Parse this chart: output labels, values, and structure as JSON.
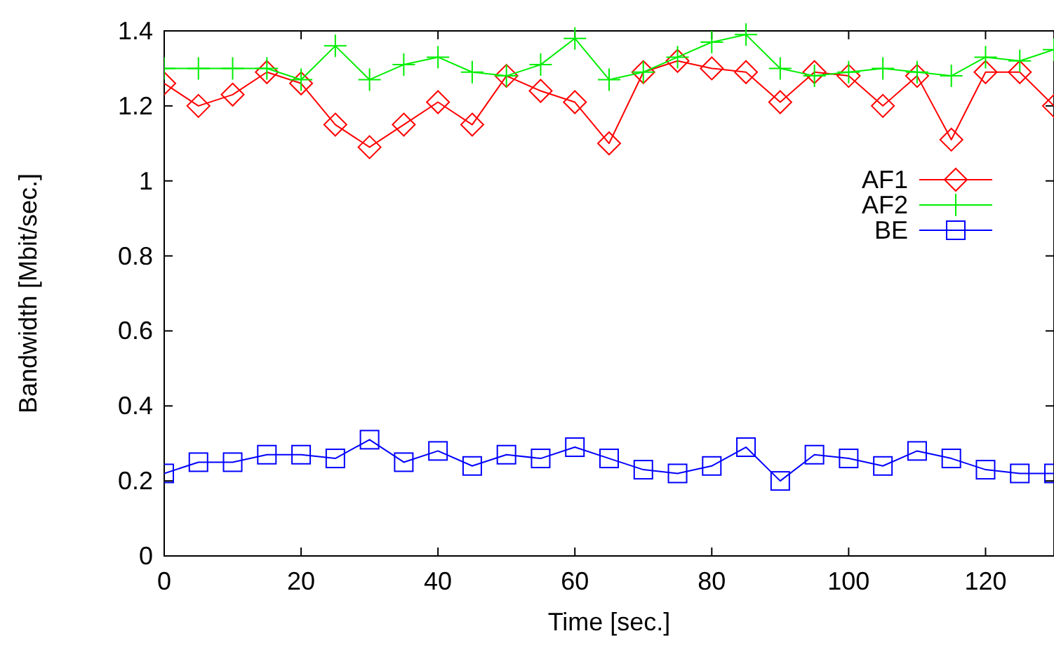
{
  "chart_data": {
    "type": "line",
    "xlabel": "Time [sec.]",
    "ylabel": "Bandwidth [Mbit/sec.]",
    "x": [
      0,
      5,
      10,
      15,
      20,
      25,
      30,
      35,
      40,
      45,
      50,
      55,
      60,
      65,
      70,
      75,
      80,
      85,
      90,
      95,
      100,
      105,
      110,
      115,
      120,
      125,
      130
    ],
    "series": [
      {
        "name": "AF1",
        "color": "#ff0000",
        "marker": "diamond",
        "values": [
          1.26,
          1.2,
          1.23,
          1.29,
          1.26,
          1.15,
          1.09,
          1.15,
          1.21,
          1.15,
          1.28,
          1.24,
          1.21,
          1.1,
          1.29,
          1.32,
          1.3,
          1.29,
          1.21,
          1.29,
          1.28,
          1.2,
          1.28,
          1.11,
          1.29,
          1.29,
          1.2
        ]
      },
      {
        "name": "AF2",
        "color": "#00ee00",
        "marker": "cross",
        "values": [
          1.3,
          1.3,
          1.3,
          1.3,
          1.27,
          1.36,
          1.27,
          1.31,
          1.33,
          1.29,
          1.28,
          1.31,
          1.38,
          1.27,
          1.29,
          1.33,
          1.37,
          1.39,
          1.3,
          1.28,
          1.29,
          1.3,
          1.29,
          1.28,
          1.33,
          1.32,
          1.35
        ]
      },
      {
        "name": "BE",
        "color": "#0000ff",
        "marker": "square",
        "values": [
          0.22,
          0.25,
          0.25,
          0.27,
          0.27,
          0.26,
          0.31,
          0.25,
          0.28,
          0.24,
          0.27,
          0.26,
          0.29,
          0.26,
          0.23,
          0.22,
          0.24,
          0.29,
          0.2,
          0.27,
          0.26,
          0.24,
          0.28,
          0.26,
          0.23,
          0.22,
          0.22
        ]
      }
    ],
    "xlim": [
      0,
      130
    ],
    "xticks": [
      0,
      20,
      40,
      60,
      80,
      100,
      120
    ],
    "ylim": [
      0,
      1.4
    ],
    "yticks": [
      0,
      0.2,
      0.4,
      0.6,
      0.8,
      1,
      1.2,
      1.4
    ],
    "grid": false,
    "legend": "right"
  }
}
